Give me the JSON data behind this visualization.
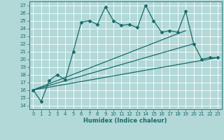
{
  "xlabel": "Humidex (Indice chaleur)",
  "xlim": [
    -0.5,
    23.5
  ],
  "ylim": [
    13.5,
    27.5
  ],
  "yticks": [
    14,
    15,
    16,
    17,
    18,
    19,
    20,
    21,
    22,
    23,
    24,
    25,
    26,
    27
  ],
  "xticks": [
    0,
    1,
    2,
    3,
    4,
    5,
    6,
    7,
    8,
    9,
    10,
    11,
    12,
    13,
    14,
    15,
    16,
    17,
    18,
    19,
    20,
    21,
    22,
    23
  ],
  "background_color": "#b2d8d8",
  "grid_color": "#ffffff",
  "line_color": "#1a6b6b",
  "lines": [
    {
      "x": [
        0,
        1,
        2,
        3,
        4,
        5,
        6,
        7,
        8,
        9,
        10,
        11,
        12,
        13,
        14,
        15,
        16,
        17,
        18,
        19,
        20,
        21,
        22,
        23
      ],
      "y": [
        16.0,
        14.5,
        17.2,
        18.0,
        17.3,
        21.0,
        24.8,
        25.0,
        24.5,
        26.8,
        25.0,
        24.4,
        24.5,
        24.1,
        27.0,
        25.0,
        23.5,
        23.7,
        23.5,
        26.2,
        22.0,
        20.0,
        20.2,
        20.2
      ],
      "marker": "D",
      "markersize": 2.0,
      "linewidth": 0.9
    },
    {
      "x": [
        0,
        19
      ],
      "y": [
        16.0,
        23.7
      ],
      "marker": null,
      "linewidth": 0.9
    },
    {
      "x": [
        0,
        20
      ],
      "y": [
        16.0,
        22.0
      ],
      "marker": null,
      "linewidth": 0.9
    },
    {
      "x": [
        0,
        23
      ],
      "y": [
        16.0,
        20.2
      ],
      "marker": null,
      "linewidth": 0.9
    }
  ]
}
